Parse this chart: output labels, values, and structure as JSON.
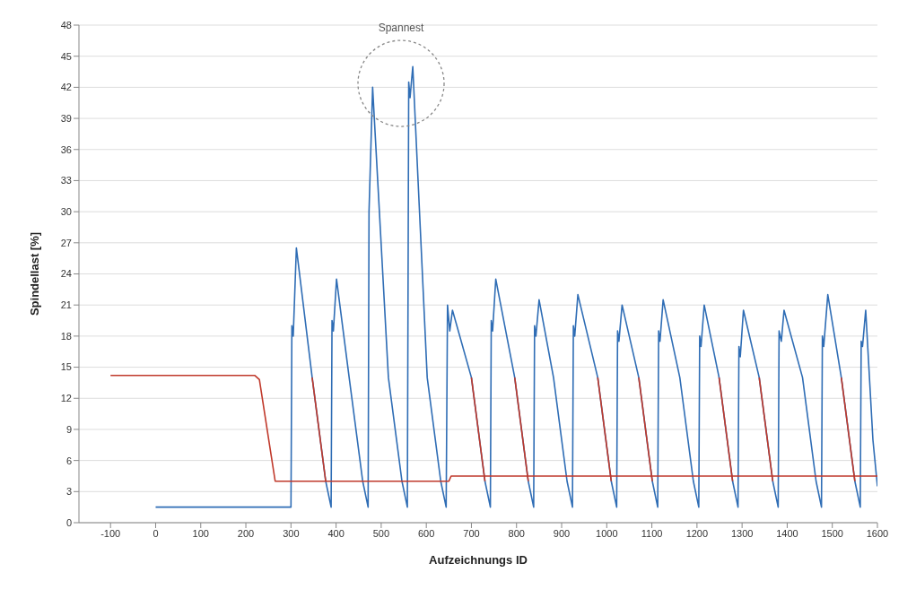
{
  "chart_data": {
    "type": "line",
    "xlabel": "Aufzeichnungs ID",
    "ylabel": "Spindellast [%]",
    "xlim": [
      -170,
      1600
    ],
    "xticks": [
      -100,
      0,
      100,
      200,
      300,
      400,
      500,
      600,
      700,
      800,
      900,
      1000,
      1100,
      1200,
      1300,
      1400,
      1500,
      1600
    ],
    "ylim": [
      0,
      48
    ],
    "yticks": [
      0,
      3,
      6,
      9,
      12,
      15,
      18,
      21,
      24,
      27,
      30,
      33,
      36,
      39,
      42,
      45,
      48
    ],
    "grid": "y",
    "annotations": [
      "Spannest"
    ],
    "series": [
      {
        "color": "#2f6db5",
        "x": [
          0,
          300,
          302,
          305,
          312,
          347,
          377,
          389,
          391,
          394,
          401,
          429,
          459,
          471,
          473,
          481,
          516,
          546,
          558,
          561,
          564,
          570,
          602,
          632,
          644,
          647,
          652,
          658,
          700,
          730,
          742,
          744,
          747,
          754,
          796,
          826,
          838,
          840,
          843,
          850,
          882,
          912,
          924,
          926,
          929,
          936,
          980,
          1010,
          1022,
          1024,
          1027,
          1034,
          1071,
          1101,
          1113,
          1115,
          1118,
          1125,
          1162,
          1192,
          1204,
          1206,
          1209,
          1216,
          1249,
          1279,
          1291,
          1293,
          1296,
          1303,
          1338,
          1368,
          1380,
          1382,
          1387,
          1393,
          1434,
          1464,
          1476,
          1478,
          1481,
          1490,
          1520,
          1550,
          1562,
          1564,
          1567,
          1574,
          1590,
          1600
        ],
        "values": [
          1.5,
          1.5,
          19,
          18,
          26.5,
          14,
          4,
          1.5,
          19.5,
          18.5,
          23.5,
          14,
          4,
          1.5,
          30,
          42,
          14,
          4,
          1.5,
          42.5,
          41,
          44,
          14,
          4,
          1.5,
          21,
          18.5,
          20.5,
          14,
          4,
          1.5,
          19.5,
          18.5,
          23.5,
          14,
          4,
          1.5,
          19,
          18,
          21.5,
          14,
          4,
          1.5,
          19,
          18,
          22,
          14,
          4,
          1.5,
          18.5,
          17.5,
          21,
          14,
          4,
          1.5,
          18.5,
          17.5,
          21.5,
          14,
          4,
          1.5,
          18,
          17,
          21,
          14,
          4,
          1.5,
          17,
          16,
          20.5,
          14,
          4,
          1.5,
          18.5,
          17.5,
          20.5,
          14,
          4,
          1.5,
          18,
          17,
          22,
          14,
          4,
          1.5,
          17.5,
          17,
          20.5,
          8,
          3.5
        ]
      },
      {
        "color": "#c0392b",
        "x": [
          -100,
          220,
          230,
          265,
          650,
          655,
          1600
        ],
        "values": [
          14.2,
          14.2,
          13.8,
          4,
          4,
          4.5,
          4.5
        ]
      },
      {
        "color": "#c0392b",
        "x": [
          347,
          377
        ],
        "values": [
          14,
          4
        ]
      },
      {
        "color": "#c0392b",
        "x": [
          700,
          730
        ],
        "values": [
          14,
          4
        ]
      },
      {
        "color": "#c0392b",
        "x": [
          796,
          826
        ],
        "values": [
          14,
          4
        ]
      },
      {
        "color": "#c0392b",
        "x": [
          980,
          1010
        ],
        "values": [
          14,
          4
        ]
      },
      {
        "color": "#c0392b",
        "x": [
          1071,
          1101
        ],
        "values": [
          14,
          4
        ]
      },
      {
        "color": "#c0392b",
        "x": [
          1249,
          1279
        ],
        "values": [
          14,
          4
        ]
      },
      {
        "color": "#c0392b",
        "x": [
          1338,
          1368
        ],
        "values": [
          14,
          4
        ]
      },
      {
        "color": "#c0392b",
        "x": [
          1520,
          1550
        ],
        "values": [
          14,
          4
        ]
      }
    ]
  }
}
